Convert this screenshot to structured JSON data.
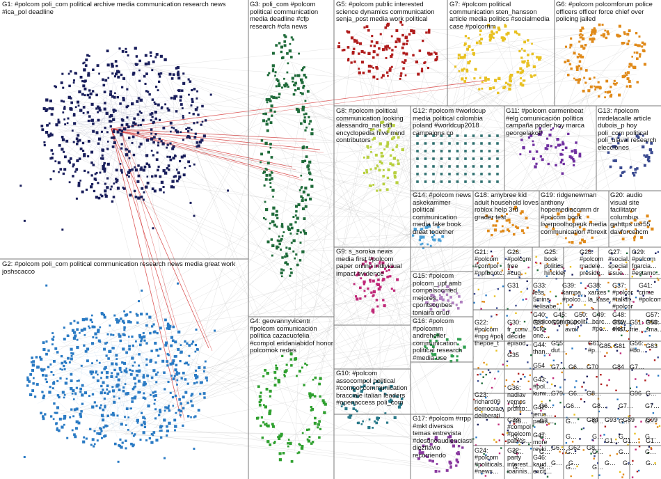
{
  "colors": {
    "G1": "#1a1f5c",
    "G2": "#2b7bc4",
    "G3": "#1f6b3a",
    "G4": "#2fa02f",
    "G5": "#b01c1c",
    "G6": "#e08a1a",
    "G7": "#e8c020",
    "G8": "#b8d040",
    "G9": "#c02878",
    "G10": "#2a7a8a",
    "G11": "#7030a0",
    "G12": "#2f7070",
    "G13": "#3a4a90",
    "G14": "#4aa0d8",
    "G15": "#b080c0",
    "G16": "#30a050",
    "G17": "#8a3aa0",
    "edge": "#9a9a9a",
    "red_edge": "#d02020"
  },
  "groups": [
    {
      "id": "G1",
      "label": "G1: #polcom poli_com political archive media communication research news #ica_pol deadline"
    },
    {
      "id": "G2",
      "label": "G2: #polcom poli_com political communication research news media great work joshscacco"
    },
    {
      "id": "G3",
      "label": "G3: poli_com #polcom political communication media deadline #cfp research #cfa news"
    },
    {
      "id": "G4",
      "label": "G4: geovannyvicentr #polcom comunicación política cazacuofelia #compol eridaniabidof honor polcomok redes"
    },
    {
      "id": "G5",
      "label": "G5: #polcom public interested science dynamics communication senja_post media work political"
    },
    {
      "id": "G6",
      "label": "G6: #polcom polcomforum police officers officer force chief over policing jailed"
    },
    {
      "id": "G7",
      "label": "G7: #polcom political communication sten_hansson article media politics #socialmedia case #polcomm"
    },
    {
      "id": "G8",
      "label": "G8: #polcom political communication looking alessandro_nai still encyclopedia hive mind contributors"
    },
    {
      "id": "G9",
      "label": "G9: s_soroka news media first #polcom paper online individual impact evidence"
    },
    {
      "id": "G10",
      "label": "G10: #polcom assocompol political #compol communication bracciale italian leaders #openaccess poli_com"
    },
    {
      "id": "G11",
      "label": "G11: #polcom carmenbeat #elg comunicación política campaña poder hoy marca georgelakoff"
    },
    {
      "id": "G12",
      "label": "G12: #polcom #worldcup media political colombia poland #worldcup2018 campaigns co"
    },
    {
      "id": "G13",
      "label": "G13: #polcom mrdelacalle article dubois_p hoy poli_com political poli_ulaval research elecciones"
    },
    {
      "id": "G14",
      "label": "G14: #polcom news askekammer political communication media fake book great together"
    },
    {
      "id": "G15",
      "label": "G15: #polcom polcom_upf amb compolsocmed mejores cpontsombes toniaira grup #comunicaciónpoliti upfbarcelona"
    },
    {
      "id": "G16",
      "label": "G16: #polcom #polcomm andreheller communication political research #media use #microtargeting papers"
    },
    {
      "id": "G17",
      "label": "G17: #polcom #rrpp #mkt diversos temas entrevista #destinoaudienciasti diezflavio recorriendo abordando"
    },
    {
      "id": "G18",
      "label": "G18: amybree kid adult household loves roblox help 3rd grader test"
    },
    {
      "id": "G19",
      "label": "G19: ridgenewman anthony hopemediacomm dr #polcom book liverpoolhopeuk media communication #brexit"
    },
    {
      "id": "G20",
      "label": "G20: audio visual site facilitator columbus gahttps usr55 dayforcehcm candidateportal diversified"
    },
    {
      "id": "G21",
      "label": "G21: #polcom #compol #npfbootc… c'est twitter president don politics nouveau mralexmo…"
    },
    {
      "id": "G22",
      "label": "G22: #polcom #npg #polj thepoe_t mstilly_m #go4bebo #thepeopl… #thepartyf thenanaa…"
    },
    {
      "id": "G23",
      "label": "G23: richard09 democracy deliberati… #democra…"
    },
    {
      "id": "G24",
      "label": "G24: #polcom #politicals… #news…"
    },
    {
      "id": "G25",
      "label": "G25: book politics hinckley love covers…"
    },
    {
      "id": "G26",
      "label": "G26: #polcom free #cug make…"
    },
    {
      "id": "G27",
      "label": "G27: #social… special issue…"
    },
    {
      "id": "G28",
      "label": "G28: #polcom madele… preside…"
    },
    {
      "id": "G29",
      "label": "G29: #polcom fgarcia… #estamo…"
    },
    {
      "id": "G30",
      "label": "G30: fr_conv… décide épisod…"
    },
    {
      "id": "G31",
      "label": "G31"
    },
    {
      "id": "G32",
      "label": "G32: party interest… ioannis…"
    },
    {
      "id": "G33",
      "label": "G33: less 5mins #elisabe…"
    },
    {
      "id": "G34",
      "label": "G34: #compol #polcom pablos…"
    },
    {
      "id": "G35",
      "label": "G35"
    },
    {
      "id": "G36",
      "label": "G36: nadiav vemos pronto…"
    },
    {
      "id": "G37",
      "label": "G37: #polcom #talkth… #polcom…"
    },
    {
      "id": "G38",
      "label": "G38: xarxes la_kase…"
    },
    {
      "id": "G39",
      "label": "G39: kampa… #polco…"
    },
    {
      "id": "G40",
      "label": "G40: #polcom ucfg one… dron…"
    },
    {
      "id": "G41",
      "label": "G41: crime #polcom…"
    },
    {
      "id": "G42",
      "label": "G42: jerus… pales…"
    },
    {
      "id": "G43",
      "label": "G43: #pol… kurw…"
    },
    {
      "id": "G44",
      "label": "G44: than…"
    },
    {
      "id": "G45",
      "label": "G45: comm…"
    },
    {
      "id": "G46",
      "label": "G46: kaud… excit…"
    },
    {
      "id": "G47",
      "label": "G47: more revki…"
    },
    {
      "id": "G48",
      "label": "G48: drew… elect…"
    },
    {
      "id": "G49",
      "label": "G49: barc… #po…"
    },
    {
      "id": "G50",
      "label": "G50: politi…"
    },
    {
      "id": "G51",
      "label": "G51: frie…"
    },
    {
      "id": "G52",
      "label": "G52: #ho…"
    },
    {
      "id": "G53",
      "label": "G53: sma…"
    },
    {
      "id": "G54",
      "label": "G54"
    },
    {
      "id": "G55",
      "label": "G55: dut…"
    },
    {
      "id": "G56",
      "label": "G56: #bo…"
    },
    {
      "id": "G57",
      "label": "G57: #ruc…"
    },
    {
      "id": "G58",
      "label": "G58"
    },
    {
      "id": "G59",
      "label": "G59"
    },
    {
      "id": "G60",
      "label": "G60: avoir"
    },
    {
      "id": "G61",
      "label": "G61: #p…"
    }
  ],
  "small_cells": [
    "G7…",
    "G6…",
    "G6…",
    "G8…",
    "G7…",
    "G7…",
    "G8…",
    "G7…",
    "G…",
    "G…",
    "G…",
    "G…",
    "G…",
    "G…",
    "G…",
    "G…",
    "G…",
    "G…",
    "G…",
    "G…",
    "G…",
    "G…",
    "G…",
    "G…",
    "G…",
    "G…",
    "G…",
    "G…"
  ],
  "small_cell_labels": [
    "G85",
    "G81",
    "G83",
    "G70",
    "G6…",
    "G7…",
    "G84",
    "G7…",
    "G79",
    "G6…",
    "G8…",
    "G96",
    "G…",
    "G89",
    "G93",
    "G84",
    "G99",
    "G1…",
    "G1…",
    "G1…",
    "G62",
    "G6…",
    "G8…",
    "G…",
    "G…",
    "G…",
    "G…",
    "G…"
  ]
}
